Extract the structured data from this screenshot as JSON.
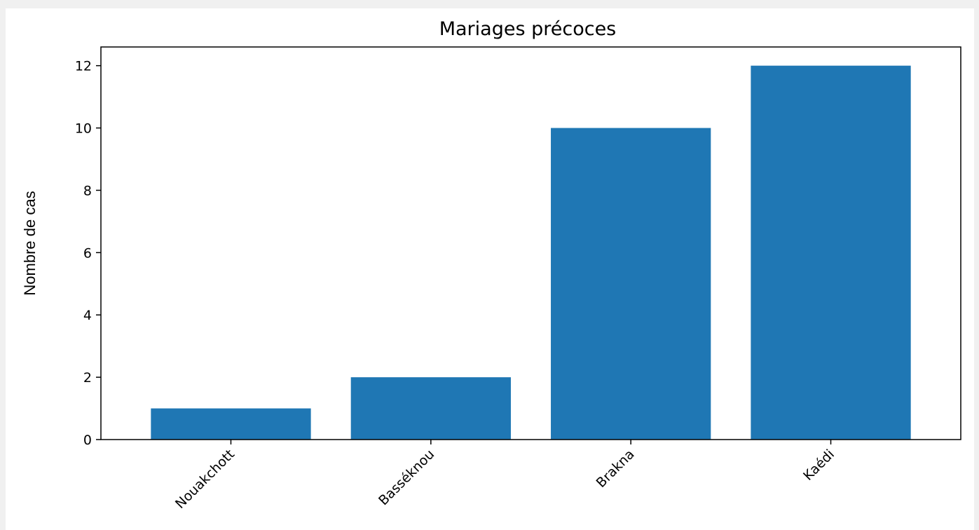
{
  "chart_data": {
    "type": "bar",
    "title": "Mariages précoces",
    "xlabel": "",
    "ylabel": "Nombre de cas",
    "categories": [
      "Nouakchott",
      "Basséknou",
      "Brakna",
      "Kaédi"
    ],
    "values": [
      1,
      2,
      10,
      12
    ],
    "ylim": [
      0,
      12.6
    ],
    "yticks": [
      0,
      2,
      4,
      6,
      8,
      10,
      12
    ],
    "bar_color": "#1f77b4",
    "grid": false,
    "legend": "none"
  }
}
